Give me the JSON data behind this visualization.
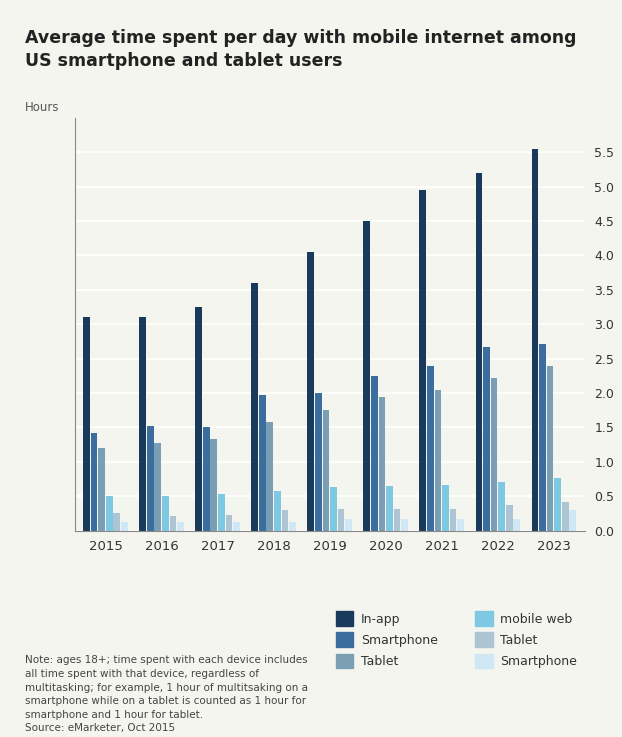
{
  "title": "Average time spent per day with mobile internet among\nUS smartphone and tablet users",
  "ylabel": "Hours",
  "years": [
    2015,
    2016,
    2017,
    2018,
    2019,
    2020,
    2021,
    2022,
    2023
  ],
  "series": {
    "in_app_smartphone": [
      3.1,
      3.1,
      3.25,
      3.6,
      4.05,
      4.5,
      4.95,
      5.2,
      5.55
    ],
    "in_app_tablet": [
      1.42,
      1.52,
      1.5,
      1.97,
      2.0,
      2.25,
      2.4,
      2.67,
      2.72
    ],
    "mobile_web_smartphone": [
      1.2,
      1.28,
      1.33,
      1.58,
      1.75,
      1.95,
      2.05,
      2.22,
      2.4
    ],
    "mobile_web_tablet": [
      0.5,
      0.5,
      0.53,
      0.57,
      0.63,
      0.65,
      0.67,
      0.7,
      0.77
    ],
    "in_app_tablet2": [
      0.25,
      0.22,
      0.23,
      0.3,
      0.32,
      0.32,
      0.32,
      0.38,
      0.42
    ],
    "mobile_web_tablet2": [
      0.13,
      0.13,
      0.13,
      0.13,
      0.17,
      0.17,
      0.17,
      0.17,
      0.3
    ]
  },
  "colors": {
    "in_app_smartphone": "#1a3a5c",
    "in_app_tablet": "#3b6e9e",
    "mobile_web_smartphone": "#7a9fb5",
    "mobile_web_tablet": "#7ec8e3",
    "in_app_tablet2": "#adc4d4",
    "mobile_web_tablet2": "#d0e8f5"
  },
  "legend_labels_left": [
    "In-app",
    "Smartphone",
    "Tablet"
  ],
  "legend_labels_right": [
    "mobile web",
    "Tablet",
    "Smartphone"
  ],
  "legend_colors_left": [
    "#1a3a5c",
    "#3b6e9e",
    "#7a9fb5"
  ],
  "legend_colors_right": [
    "#7ec8e3",
    "#adc4d4",
    "#d0e8f5"
  ],
  "note": "Note: ages 18+; time spent with each device includes\nall time spent with that device, regardless of\nmultitasking; for example, 1 hour of multitsaking on a\nsmartphone while on a tablet is counted as 1 hour for\nsmartphone and 1 hour for tablet.\nSource: eMarketer, Oct 2015",
  "ylim": [
    0,
    6.0
  ],
  "yticks": [
    0,
    0.5,
    1.0,
    1.5,
    2.0,
    2.5,
    3.0,
    3.5,
    4.0,
    4.5,
    5.0,
    5.5
  ],
  "background_color": "#f5f5f0"
}
